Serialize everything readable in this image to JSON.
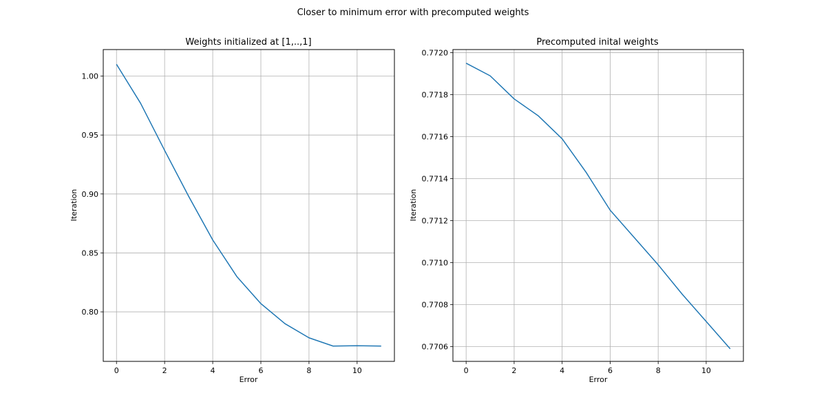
{
  "figure": {
    "suptitle": "Closer to minimum error with precomputed weights"
  },
  "chart_data": [
    {
      "type": "line",
      "title": "Weights initialized at [1,..,1]",
      "xlabel": "Error",
      "ylabel": "Iteration",
      "x": [
        0,
        1,
        2,
        3,
        4,
        5,
        6,
        7,
        8,
        9,
        10,
        11
      ],
      "series": [
        {
          "values": [
            1.01,
            0.977,
            0.937,
            0.898,
            0.861,
            0.83,
            0.807,
            0.79,
            0.778,
            0.771,
            0.7713,
            0.771
          ]
        }
      ],
      "xticks": [
        0,
        2,
        4,
        6,
        8,
        10
      ],
      "xtick_labels": [
        "0",
        "2",
        "4",
        "6",
        "8",
        "10"
      ],
      "yticks": [
        0.8,
        0.85,
        0.9,
        0.95,
        1.0
      ],
      "ytick_labels": [
        "0.80",
        "0.85",
        "0.90",
        "0.95",
        "1.00"
      ],
      "xlim": [
        -0.55,
        11.55
      ],
      "ylim": [
        0.758,
        1.0225
      ],
      "grid": true,
      "color": "#1f77b4"
    },
    {
      "type": "line",
      "title": "Precomputed inital weights",
      "xlabel": "Error",
      "ylabel": "Iteration",
      "x": [
        0,
        1,
        2,
        3,
        4,
        5,
        6,
        7,
        8,
        9,
        10,
        11
      ],
      "series": [
        {
          "values": [
            0.77195,
            0.77189,
            0.77178,
            0.7717,
            0.77159,
            0.77143,
            0.77125,
            0.77112,
            0.77099,
            0.77085,
            0.77072,
            0.77059
          ]
        }
      ],
      "xticks": [
        0,
        2,
        4,
        6,
        8,
        10
      ],
      "xtick_labels": [
        "0",
        "2",
        "4",
        "6",
        "8",
        "10"
      ],
      "yticks": [
        0.7706,
        0.7708,
        0.771,
        0.7712,
        0.7714,
        0.7716,
        0.7718,
        0.772
      ],
      "ytick_labels": [
        "0.7706",
        "0.7708",
        "0.7710",
        "0.7712",
        "0.7714",
        "0.7716",
        "0.7718",
        "0.7720"
      ],
      "xlim": [
        -0.55,
        11.55
      ],
      "ylim": [
        0.77053,
        0.772015
      ],
      "grid": true,
      "color": "#1f77b4"
    }
  ]
}
